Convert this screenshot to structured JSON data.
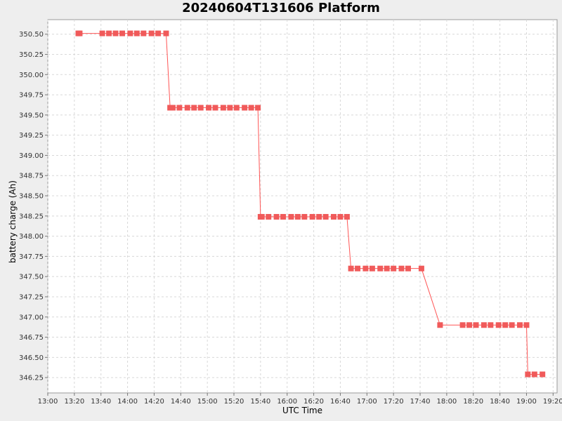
{
  "chart_data": {
    "type": "line",
    "title": "20240604T131606 Platform",
    "xlabel": "UTC Time",
    "ylabel": "battery charge (Ah)",
    "x_ticks": [
      "13:00",
      "13:20",
      "13:40",
      "14:00",
      "14:20",
      "14:40",
      "15:00",
      "15:20",
      "15:40",
      "16:00",
      "16:20",
      "16:40",
      "17:00",
      "17:20",
      "17:40",
      "18:00",
      "18:20",
      "18:40",
      "19:00",
      "19:20"
    ],
    "y_ticks": [
      "346.25",
      "346.50",
      "346.75",
      "347.00",
      "347.25",
      "347.50",
      "347.75",
      "348.00",
      "348.25",
      "348.50",
      "348.75",
      "349.00",
      "349.25",
      "349.50",
      "349.75",
      "350.00",
      "350.25",
      "350.50"
    ],
    "xlim": [
      "13:00",
      "19:23"
    ],
    "ylim": [
      346.06,
      350.68
    ],
    "grid": true,
    "colors": {
      "series": "#ff5555",
      "marker": "#f05a5a",
      "plot_background": "#ffffff",
      "grid": "#d8d8d8"
    },
    "series": [
      {
        "x": [
          "13:23",
          "13:24",
          "13:41",
          "13:46",
          "13:51",
          "13:56",
          "14:02",
          "14:07",
          "14:12",
          "14:18",
          "14:23",
          "14:29",
          "14:32",
          "14:34",
          "14:39",
          "14:45",
          "14:50",
          "14:55",
          "15:01",
          "15:06",
          "15:12",
          "15:17",
          "15:22",
          "15:28",
          "15:33",
          "15:38",
          "15:40",
          "15:41",
          "15:46",
          "15:52",
          "15:57",
          "16:03",
          "16:08",
          "16:13",
          "16:19",
          "16:24",
          "16:29",
          "16:35",
          "16:40",
          "16:45",
          "16:48",
          "16:53",
          "16:59",
          "17:04",
          "17:10",
          "17:15",
          "17:20",
          "17:26",
          "17:31",
          "17:41",
          "17:55",
          "18:12",
          "18:17",
          "18:22",
          "18:28",
          "18:33",
          "18:39",
          "18:44",
          "18:49",
          "18:55",
          "19:00",
          "19:01",
          "19:06",
          "19:12"
        ],
        "y": [
          350.51,
          350.51,
          350.51,
          350.51,
          350.51,
          350.51,
          350.51,
          350.51,
          350.51,
          350.51,
          350.51,
          350.51,
          349.59,
          349.59,
          349.59,
          349.59,
          349.59,
          349.59,
          349.59,
          349.59,
          349.59,
          349.59,
          349.59,
          349.59,
          349.59,
          349.59,
          348.24,
          348.24,
          348.24,
          348.24,
          348.24,
          348.24,
          348.24,
          348.24,
          348.24,
          348.24,
          348.24,
          348.24,
          348.24,
          348.24,
          347.6,
          347.6,
          347.6,
          347.6,
          347.6,
          347.6,
          347.6,
          347.6,
          347.6,
          347.6,
          346.9,
          346.9,
          346.9,
          346.9,
          346.9,
          346.9,
          346.9,
          346.9,
          346.9,
          346.9,
          346.9,
          346.29,
          346.29,
          346.29
        ]
      }
    ]
  }
}
